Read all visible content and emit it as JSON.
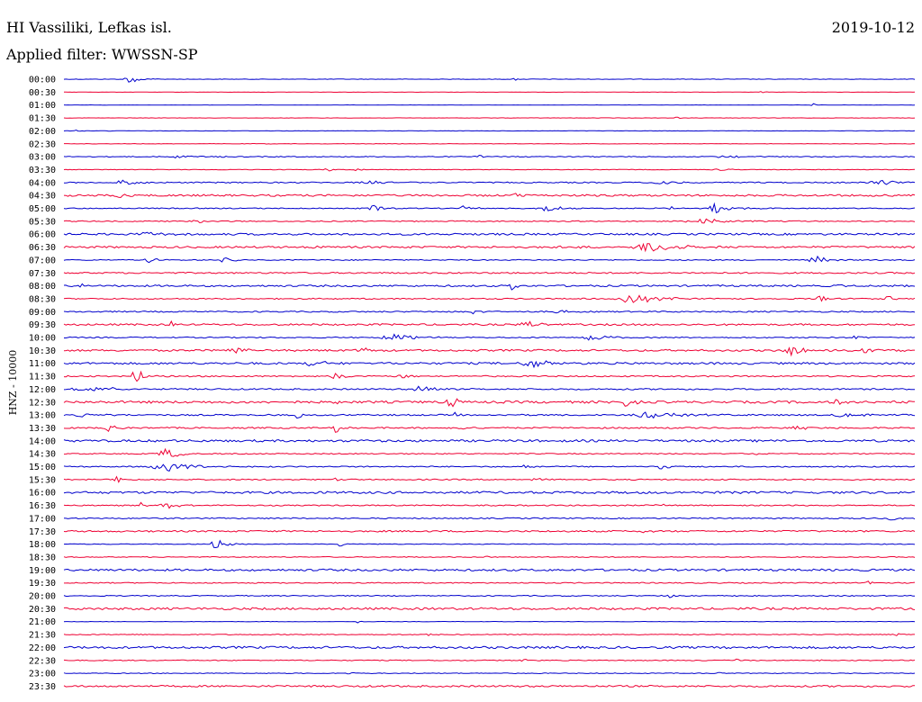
{
  "header": {
    "station": "HI Vassiliki, Lefkas isl.",
    "date": "2019-10-12",
    "filter": "Applied filter: WWSSN-SP"
  },
  "chart_data": {
    "type": "line",
    "ylabel": "HNZ - 10000",
    "trace_colors": [
      "#0000cc",
      "#ee0033"
    ],
    "rows": [
      {
        "time": "00:00",
        "noise": 0.3,
        "events": [
          {
            "pos": 0.08,
            "amp": 5,
            "width": 0.012
          },
          {
            "pos": 0.53,
            "amp": 2,
            "width": 0.003
          }
        ]
      },
      {
        "time": "00:30",
        "noise": 0.2,
        "events": [
          {
            "pos": 0.82,
            "amp": 2,
            "width": 0.003
          }
        ]
      },
      {
        "time": "01:00",
        "noise": 0.2,
        "events": [
          {
            "pos": 0.88,
            "amp": 2,
            "width": 0.003
          }
        ]
      },
      {
        "time": "01:30",
        "noise": 0.2,
        "events": [
          {
            "pos": 0.72,
            "amp": 1.5,
            "width": 0.003
          }
        ]
      },
      {
        "time": "02:00",
        "noise": 0.3,
        "events": [
          {
            "pos": 0.015,
            "amp": 2,
            "width": 0.003
          },
          {
            "pos": 0.053,
            "amp": 2,
            "width": 0.003
          }
        ]
      },
      {
        "time": "02:30",
        "noise": 0.3,
        "events": [
          {
            "pos": 0.24,
            "amp": 1.5,
            "width": 0.003
          }
        ]
      },
      {
        "time": "03:00",
        "noise": 0.6,
        "events": [
          {
            "pos": 0.14,
            "amp": 2,
            "width": 0.02
          },
          {
            "pos": 0.49,
            "amp": 1.5,
            "width": 0.02
          },
          {
            "pos": 0.78,
            "amp": 1.5,
            "width": 0.02
          }
        ]
      },
      {
        "time": "03:30",
        "noise": 0.4,
        "events": [
          {
            "pos": 0.31,
            "amp": 3,
            "width": 0.005
          },
          {
            "pos": 0.345,
            "amp": 2,
            "width": 0.005
          },
          {
            "pos": 0.77,
            "amp": 1.5,
            "width": 0.01
          }
        ]
      },
      {
        "time": "04:00",
        "noise": 0.8,
        "events": [
          {
            "pos": 0.07,
            "amp": 6,
            "width": 0.01
          },
          {
            "pos": 0.36,
            "amp": 3,
            "width": 0.02
          },
          {
            "pos": 0.7,
            "amp": 6,
            "width": 0.01
          },
          {
            "pos": 0.96,
            "amp": 3,
            "width": 0.02
          }
        ]
      },
      {
        "time": "04:30",
        "noise": 1.3,
        "events": [
          {
            "pos": 0.065,
            "amp": 7,
            "width": 0.005
          },
          {
            "pos": 0.53,
            "amp": 2,
            "width": 0.01
          }
        ]
      },
      {
        "time": "05:00",
        "noise": 0.7,
        "events": [
          {
            "pos": 0.365,
            "amp": 4,
            "width": 0.01
          },
          {
            "pos": 0.47,
            "amp": 3,
            "width": 0.01
          },
          {
            "pos": 0.565,
            "amp": 4,
            "width": 0.015
          },
          {
            "pos": 0.715,
            "amp": 3,
            "width": 0.005
          },
          {
            "pos": 0.765,
            "amp": 6,
            "width": 0.015
          }
        ]
      },
      {
        "time": "05:30",
        "noise": 0.7,
        "events": [
          {
            "pos": 0.16,
            "amp": 4,
            "width": 0.01
          },
          {
            "pos": 0.755,
            "amp": 3,
            "width": 0.03
          }
        ]
      },
      {
        "time": "06:00",
        "noise": 1.3,
        "events": [
          {
            "pos": 0.1,
            "amp": 2,
            "width": 0.02
          }
        ]
      },
      {
        "time": "06:30",
        "noise": 1.3,
        "events": [
          {
            "pos": 0.69,
            "amp": 7,
            "width": 0.025
          },
          {
            "pos": 0.295,
            "amp": 2.5,
            "width": 0.005
          },
          {
            "pos": 0.59,
            "amp": 2,
            "width": 0.01
          }
        ]
      },
      {
        "time": "07:00",
        "noise": 0.7,
        "events": [
          {
            "pos": 0.1,
            "amp": 3,
            "width": 0.01
          },
          {
            "pos": 0.19,
            "amp": 3,
            "width": 0.01
          },
          {
            "pos": 0.885,
            "amp": 5,
            "width": 0.012
          }
        ]
      },
      {
        "time": "07:30",
        "noise": 1.0,
        "events": []
      },
      {
        "time": "08:00",
        "noise": 1.2,
        "events": [
          {
            "pos": 0.02,
            "amp": 4,
            "width": 0.004
          },
          {
            "pos": 0.527,
            "amp": 6,
            "width": 0.004
          },
          {
            "pos": 0.91,
            "amp": 2,
            "width": 0.005
          }
        ]
      },
      {
        "time": "08:30",
        "noise": 0.8,
        "events": [
          {
            "pos": 0.67,
            "amp": 5,
            "width": 0.03
          },
          {
            "pos": 0.89,
            "amp": 4,
            "width": 0.008
          },
          {
            "pos": 0.97,
            "amp": 3,
            "width": 0.01
          }
        ]
      },
      {
        "time": "09:00",
        "noise": 0.9,
        "events": [
          {
            "pos": 0.48,
            "amp": 3,
            "width": 0.01
          },
          {
            "pos": 0.58,
            "amp": 2.5,
            "width": 0.01
          }
        ]
      },
      {
        "time": "09:30",
        "noise": 1.2,
        "events": [
          {
            "pos": 0.126,
            "amp": 4,
            "width": 0.005
          },
          {
            "pos": 0.545,
            "amp": 5,
            "width": 0.01
          }
        ]
      },
      {
        "time": "10:00",
        "noise": 0.8,
        "events": [
          {
            "pos": 0.39,
            "amp": 4,
            "width": 0.025
          },
          {
            "pos": 0.62,
            "amp": 4,
            "width": 0.02
          },
          {
            "pos": 0.93,
            "amp": 2,
            "width": 0.01
          }
        ]
      },
      {
        "time": "10:30",
        "noise": 1.3,
        "events": [
          {
            "pos": 0.2,
            "amp": 6,
            "width": 0.01
          },
          {
            "pos": 0.35,
            "amp": 4,
            "width": 0.01
          },
          {
            "pos": 0.855,
            "amp": 7,
            "width": 0.012
          },
          {
            "pos": 0.94,
            "amp": 3,
            "width": 0.01
          }
        ]
      },
      {
        "time": "11:00",
        "noise": 1.4,
        "events": [
          {
            "pos": 0.29,
            "amp": 3,
            "width": 0.02
          },
          {
            "pos": 0.55,
            "amp": 6,
            "width": 0.015
          }
        ]
      },
      {
        "time": "11:30",
        "noise": 0.9,
        "events": [
          {
            "pos": 0.085,
            "amp": 8,
            "width": 0.01
          },
          {
            "pos": 0.32,
            "amp": 4,
            "width": 0.01
          },
          {
            "pos": 0.4,
            "amp": 3,
            "width": 0.01
          }
        ]
      },
      {
        "time": "12:00",
        "noise": 1.0,
        "events": [
          {
            "pos": 0.03,
            "amp": 3,
            "width": 0.03
          },
          {
            "pos": 0.42,
            "amp": 6,
            "width": 0.012
          }
        ]
      },
      {
        "time": "12:30",
        "noise": 1.6,
        "events": [
          {
            "pos": 0.32,
            "amp": 5,
            "width": 0.005
          },
          {
            "pos": 0.455,
            "amp": 8,
            "width": 0.006
          },
          {
            "pos": 0.66,
            "amp": 6,
            "width": 0.008
          },
          {
            "pos": 0.91,
            "amp": 5,
            "width": 0.008
          },
          {
            "pos": 0.94,
            "amp": 4,
            "width": 0.005
          }
        ]
      },
      {
        "time": "13:00",
        "noise": 1.0,
        "events": [
          {
            "pos": 0.02,
            "amp": 3,
            "width": 0.015
          },
          {
            "pos": 0.275,
            "amp": 5,
            "width": 0.006
          },
          {
            "pos": 0.46,
            "amp": 3,
            "width": 0.005
          },
          {
            "pos": 0.69,
            "amp": 4,
            "width": 0.03
          },
          {
            "pos": 0.915,
            "amp": 4,
            "width": 0.012
          }
        ]
      },
      {
        "time": "13:30",
        "noise": 1.0,
        "events": [
          {
            "pos": 0.055,
            "amp": 5,
            "width": 0.008
          },
          {
            "pos": 0.32,
            "amp": 6,
            "width": 0.006
          },
          {
            "pos": 0.465,
            "amp": 4,
            "width": 0.005
          },
          {
            "pos": 0.86,
            "amp": 3,
            "width": 0.01
          }
        ]
      },
      {
        "time": "14:00",
        "noise": 1.5,
        "events": []
      },
      {
        "time": "14:30",
        "noise": 0.7,
        "events": [
          {
            "pos": 0.12,
            "amp": 7,
            "width": 0.012
          },
          {
            "pos": 0.81,
            "amp": 3,
            "width": 0.005
          }
        ]
      },
      {
        "time": "15:00",
        "noise": 0.8,
        "events": [
          {
            "pos": 0.125,
            "amp": 5,
            "width": 0.03
          },
          {
            "pos": 0.54,
            "amp": 3,
            "width": 0.01
          },
          {
            "pos": 0.7,
            "amp": 3,
            "width": 0.01
          }
        ]
      },
      {
        "time": "15:30",
        "noise": 0.8,
        "events": [
          {
            "pos": 0.062,
            "amp": 4,
            "width": 0.005
          },
          {
            "pos": 0.32,
            "amp": 2,
            "width": 0.005
          },
          {
            "pos": 0.55,
            "amp": 2,
            "width": 0.01
          }
        ]
      },
      {
        "time": "16:00",
        "noise": 1.5,
        "events": []
      },
      {
        "time": "16:30",
        "noise": 0.8,
        "events": [
          {
            "pos": 0.09,
            "amp": 3,
            "width": 0.005
          },
          {
            "pos": 0.122,
            "amp": 5,
            "width": 0.012
          },
          {
            "pos": 0.7,
            "amp": 2,
            "width": 0.01
          }
        ]
      },
      {
        "time": "17:00",
        "noise": 0.8,
        "events": [
          {
            "pos": 0.975,
            "amp": 3,
            "width": 0.01
          }
        ]
      },
      {
        "time": "17:30",
        "noise": 1.1,
        "events": [
          {
            "pos": 0.68,
            "amp": 3,
            "width": 0.005
          }
        ]
      },
      {
        "time": "18:00",
        "noise": 0.5,
        "events": [
          {
            "pos": 0.18,
            "amp": 6,
            "width": 0.01
          },
          {
            "pos": 0.325,
            "amp": 3,
            "width": 0.005
          }
        ]
      },
      {
        "time": "18:30",
        "noise": 0.6,
        "events": [
          {
            "pos": 0.495,
            "amp": 2,
            "width": 0.005
          }
        ]
      },
      {
        "time": "19:00",
        "noise": 1.4,
        "events": []
      },
      {
        "time": "19:30",
        "noise": 0.7,
        "events": [
          {
            "pos": 0.945,
            "amp": 2,
            "width": 0.005
          }
        ]
      },
      {
        "time": "20:00",
        "noise": 0.7,
        "events": [
          {
            "pos": 0.71,
            "amp": 3,
            "width": 0.01
          },
          {
            "pos": 0.79,
            "amp": 2,
            "width": 0.005
          }
        ]
      },
      {
        "time": "20:30",
        "noise": 1.5,
        "events": []
      },
      {
        "time": "21:00",
        "noise": 0.3,
        "events": [
          {
            "pos": 0.345,
            "amp": 2,
            "width": 0.003
          }
        ]
      },
      {
        "time": "21:30",
        "noise": 0.6,
        "events": [
          {
            "pos": 0.43,
            "amp": 2,
            "width": 0.005
          },
          {
            "pos": 0.98,
            "amp": 2,
            "width": 0.005
          }
        ]
      },
      {
        "time": "22:00",
        "noise": 1.5,
        "events": []
      },
      {
        "time": "22:30",
        "noise": 0.6,
        "events": [
          {
            "pos": 0.54,
            "amp": 2,
            "width": 0.005
          },
          {
            "pos": 0.79,
            "amp": 2,
            "width": 0.005
          },
          {
            "pos": 0.885,
            "amp": 2,
            "width": 0.005
          }
        ]
      },
      {
        "time": "23:00",
        "noise": 0.5,
        "events": [
          {
            "pos": 0.335,
            "amp": 2,
            "width": 0.004
          },
          {
            "pos": 0.77,
            "amp": 2,
            "width": 0.004
          }
        ]
      },
      {
        "time": "23:30",
        "noise": 1.2,
        "events": []
      }
    ]
  }
}
